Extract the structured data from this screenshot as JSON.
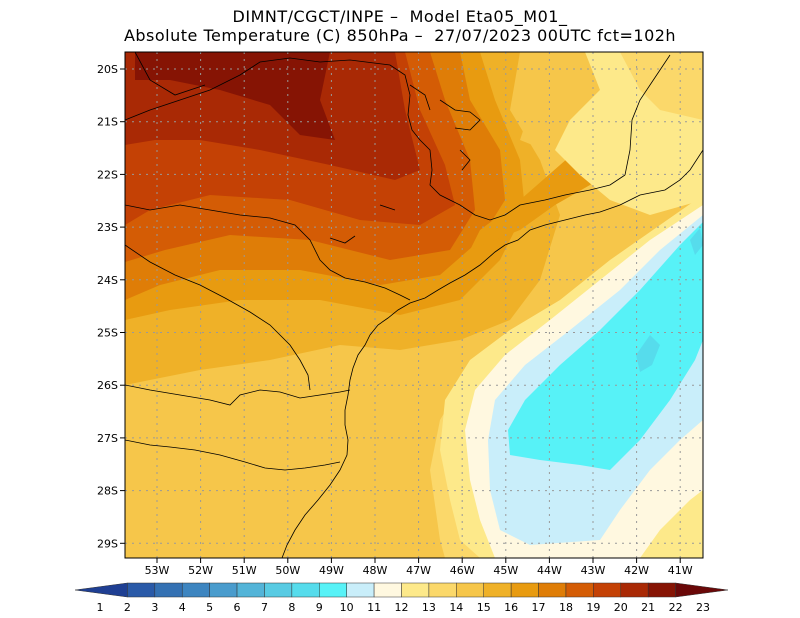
{
  "title_line1": "DIMNT/CGCT/INPE –  Model Eta05_M01_",
  "title_line2": "Absolute Temperature (C) 850hPa –  27/07/2023 00UTC fct=102h",
  "lat_labels": [
    "20S",
    "21S",
    "22S",
    "23S",
    "24S",
    "25S",
    "26S",
    "27S",
    "28S",
    "29S"
  ],
  "lon_labels": [
    "53W",
    "52W",
    "51W",
    "50W",
    "49W",
    "48W",
    "47W",
    "46W",
    "45W",
    "44W",
    "43W",
    "42W",
    "41W"
  ],
  "colorbar": {
    "labels": [
      "1",
      "2",
      "3",
      "4",
      "5",
      "6",
      "7",
      "8",
      "9",
      "10",
      "11",
      "12",
      "13",
      "14",
      "15",
      "16",
      "17",
      "18",
      "19",
      "20",
      "21",
      "22",
      "23"
    ],
    "colors": [
      "#1f3f93",
      "#2a5aa8",
      "#3471b3",
      "#3d85c0",
      "#4a9ccd",
      "#53b4d8",
      "#58cbe3",
      "#56dcec",
      "#57f2f7",
      "#c9eefa",
      "#fff8e0",
      "#fde98a",
      "#fbd86a",
      "#f6c64a",
      "#efb128",
      "#e89b10",
      "#df7d07",
      "#d45c05",
      "#c44105",
      "#a92905",
      "#861404",
      "#6a0808"
    ]
  },
  "map_colors": {
    "t21": "#861404",
    "t20": "#a92905",
    "t19": "#c44105",
    "t18": "#d45c05",
    "t17": "#df7d07",
    "t16": "#e89b10",
    "t15": "#efb128",
    "t14": "#f6c64a",
    "t13": "#fbd86a",
    "t12": "#fde98a",
    "t11": "#fff8e0",
    "t10": "#c9eefa",
    "t9": "#57f2f7",
    "t8": "#56dcec"
  }
}
